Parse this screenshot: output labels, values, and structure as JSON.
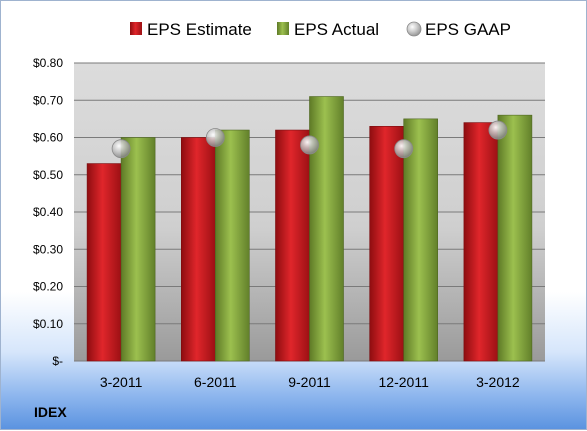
{
  "chart_data": {
    "type": "bar",
    "categories": [
      "3-2011",
      "6-2011",
      "9-2011",
      "12-2011",
      "3-2012"
    ],
    "series": [
      {
        "name": "EPS Estimate",
        "type": "bar",
        "color": "#c0171c",
        "values": [
          0.53,
          0.6,
          0.62,
          0.63,
          0.64
        ]
      },
      {
        "name": "EPS Actual",
        "type": "bar",
        "color": "#7f9f3a",
        "values": [
          0.6,
          0.62,
          0.71,
          0.65,
          0.66
        ]
      },
      {
        "name": "EPS GAAP",
        "type": "scatter",
        "color": "#b9b9b9",
        "values": [
          0.57,
          0.6,
          0.58,
          0.57,
          0.62
        ]
      }
    ],
    "y_ticks": [
      "$-",
      "$0.10",
      "$0.20",
      "$0.30",
      "$0.40",
      "$0.50",
      "$0.60",
      "$0.70",
      "$0.80"
    ],
    "ylim": [
      0,
      0.8
    ],
    "grid": true,
    "legend_position": "top"
  },
  "ticker": "IDEX"
}
